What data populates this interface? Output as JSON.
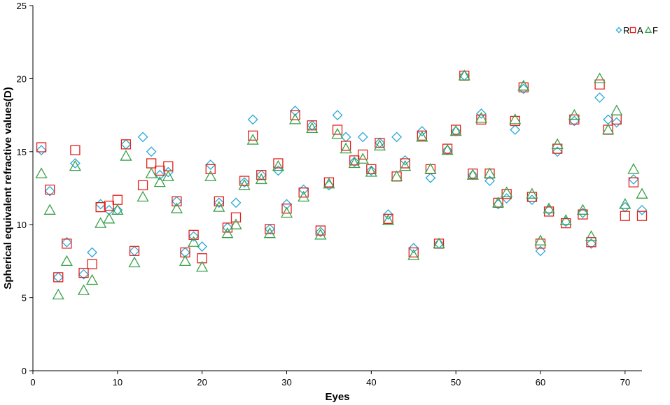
{
  "chart_data": {
    "type": "scatter",
    "xlabel": "Eyes",
    "ylabel": "Spherical equivalent refractive values(D)",
    "xlim": [
      0,
      72
    ],
    "ylim": [
      0,
      25
    ],
    "xticks": [
      0,
      10,
      20,
      30,
      40,
      50,
      60,
      70
    ],
    "yticks": [
      0,
      5,
      10,
      15,
      20,
      25
    ],
    "grid": false,
    "legend_position": "top-right",
    "x": [
      1,
      2,
      3,
      4,
      5,
      6,
      7,
      8,
      9,
      10,
      11,
      12,
      13,
      14,
      15,
      16,
      17,
      18,
      19,
      20,
      21,
      22,
      23,
      24,
      25,
      26,
      27,
      28,
      29,
      30,
      31,
      32,
      33,
      34,
      35,
      36,
      37,
      38,
      39,
      40,
      41,
      42,
      43,
      44,
      45,
      46,
      47,
      48,
      49,
      50,
      51,
      52,
      53,
      54,
      55,
      56,
      57,
      58,
      59,
      60,
      61,
      62,
      63,
      64,
      65,
      66,
      67,
      68,
      69,
      70,
      71,
      72
    ],
    "series": [
      {
        "name": "R",
        "marker": "diamond",
        "color": "#29a9d8",
        "values": [
          15.1,
          12.3,
          6.4,
          8.8,
          14.2,
          6.6,
          8.1,
          11.4,
          11.0,
          11.0,
          15.5,
          8.2,
          16.0,
          15.0,
          13.4,
          13.6,
          11.6,
          8.1,
          9.2,
          8.5,
          14.1,
          11.5,
          9.8,
          11.5,
          12.9,
          17.2,
          13.4,
          9.7,
          13.7,
          11.4,
          17.8,
          12.4,
          16.8,
          9.5,
          12.7,
          17.5,
          16.0,
          14.3,
          16.0,
          13.7,
          15.6,
          10.7,
          16.0,
          14.4,
          8.4,
          16.4,
          13.2,
          8.7,
          15.1,
          16.4,
          20.2,
          13.4,
          17.6,
          13.0,
          11.4,
          11.8,
          16.5,
          19.3,
          11.7,
          8.2,
          11.0,
          15.0,
          10.2,
          17.1,
          10.8,
          8.7,
          18.7,
          17.2,
          17.0,
          11.2,
          13.1,
          11.0
        ]
      },
      {
        "name": "A",
        "marker": "square",
        "color": "#e3201b",
        "values": [
          15.3,
          12.4,
          6.4,
          8.7,
          15.1,
          6.7,
          7.3,
          11.2,
          11.3,
          11.7,
          15.5,
          8.2,
          12.7,
          14.2,
          13.7,
          14.0,
          11.6,
          8.1,
          9.3,
          7.7,
          13.8,
          11.6,
          9.8,
          10.5,
          13.0,
          16.1,
          13.4,
          9.7,
          14.2,
          11.1,
          17.5,
          12.2,
          16.8,
          9.6,
          12.9,
          16.5,
          15.4,
          14.4,
          14.8,
          13.8,
          15.6,
          10.4,
          13.3,
          14.2,
          8.1,
          16.1,
          13.8,
          8.7,
          15.2,
          16.5,
          20.2,
          13.5,
          17.2,
          13.5,
          11.5,
          12.1,
          17.1,
          19.4,
          11.9,
          8.7,
          10.9,
          15.2,
          10.1,
          17.2,
          10.7,
          8.8,
          19.6,
          16.5,
          17.2,
          10.6,
          12.9,
          10.6
        ]
      },
      {
        "name": "F",
        "marker": "triangle",
        "color": "#3aa14a",
        "values": [
          13.5,
          11.0,
          5.2,
          7.5,
          14.0,
          5.5,
          6.2,
          10.1,
          10.4,
          11.0,
          14.7,
          7.4,
          11.9,
          13.5,
          12.9,
          13.3,
          11.1,
          7.5,
          8.8,
          7.1,
          13.3,
          11.2,
          9.4,
          10.0,
          12.7,
          15.8,
          13.1,
          9.4,
          14.0,
          10.8,
          17.2,
          11.9,
          16.6,
          9.3,
          12.8,
          16.2,
          15.2,
          14.2,
          14.5,
          13.6,
          15.4,
          10.3,
          13.3,
          14.0,
          7.9,
          16.0,
          13.8,
          8.7,
          15.1,
          16.4,
          20.2,
          13.4,
          17.3,
          13.5,
          11.5,
          12.2,
          17.2,
          19.5,
          12.1,
          8.9,
          11.1,
          15.5,
          10.3,
          17.5,
          11.0,
          9.2,
          20.0,
          16.5,
          17.8,
          11.4,
          13.8,
          12.1
        ]
      }
    ]
  }
}
